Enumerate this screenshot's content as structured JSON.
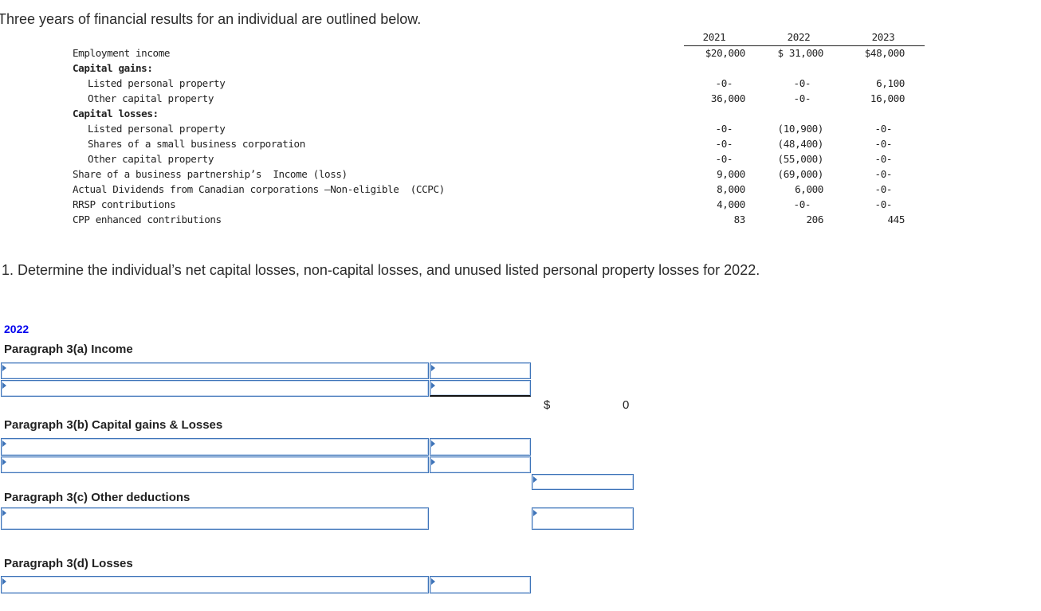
{
  "intro": "Three years of financial results for an individual are outlined below.",
  "table": {
    "years": [
      "2021",
      "2022",
      "2023"
    ],
    "rows": [
      {
        "label": "Employment income",
        "indent": 0,
        "bold": false,
        "values": [
          "$20,000",
          "$ 31,000",
          "$48,000"
        ]
      },
      {
        "label": "Capital gains:",
        "indent": 0,
        "bold": true,
        "values": []
      },
      {
        "label": "Listed personal property",
        "indent": 1,
        "bold": false,
        "values": [
          "-0-",
          "-0-",
          "6,100"
        ]
      },
      {
        "label": "Other capital property",
        "indent": 1,
        "bold": false,
        "values": [
          "36,000",
          "-0-",
          "16,000"
        ]
      },
      {
        "label": "Capital losses:",
        "indent": 0,
        "bold": true,
        "values": []
      },
      {
        "label": "Listed personal property",
        "indent": 1,
        "bold": false,
        "values": [
          "-0-",
          "(10,900)",
          "-0-"
        ]
      },
      {
        "label": "Shares of a small business corporation",
        "indent": 1,
        "bold": false,
        "values": [
          "-0-",
          "(48,400)",
          "-0-"
        ]
      },
      {
        "label": "Other capital property",
        "indent": 1,
        "bold": false,
        "values": [
          "-0-",
          "(55,000)",
          "-0-"
        ]
      },
      {
        "label": "Share of a business partnership’s  Income (loss)",
        "indent": 0,
        "bold": false,
        "values": [
          "9,000",
          "(69,000)",
          "-0-"
        ]
      },
      {
        "label": "Actual Dividends from Canadian corporations –Non-eligible  (CCPC)",
        "indent": 0,
        "bold": false,
        "values": [
          "8,000",
          "6,000",
          "-0-"
        ]
      },
      {
        "label": "RRSP contributions",
        "indent": 0,
        "bold": false,
        "values": [
          "4,000",
          "-0-",
          "-0-"
        ]
      },
      {
        "label": "CPP enhanced contributions",
        "indent": 0,
        "bold": false,
        "values": [
          "83",
          "206",
          "445"
        ]
      }
    ]
  },
  "question": "1. Determine the individual’s net capital losses, non-capital losses, and unused listed personal property losses for 2022.",
  "form": {
    "year": "2022",
    "sections": {
      "a": "Paragraph 3(a) Income",
      "b": "Paragraph 3(b) Capital gains & Losses",
      "c": "Paragraph 3(c) Other deductions",
      "d": "Paragraph 3(d) Losses"
    },
    "subtotal_currency": "$",
    "subtotal_value": "0"
  }
}
